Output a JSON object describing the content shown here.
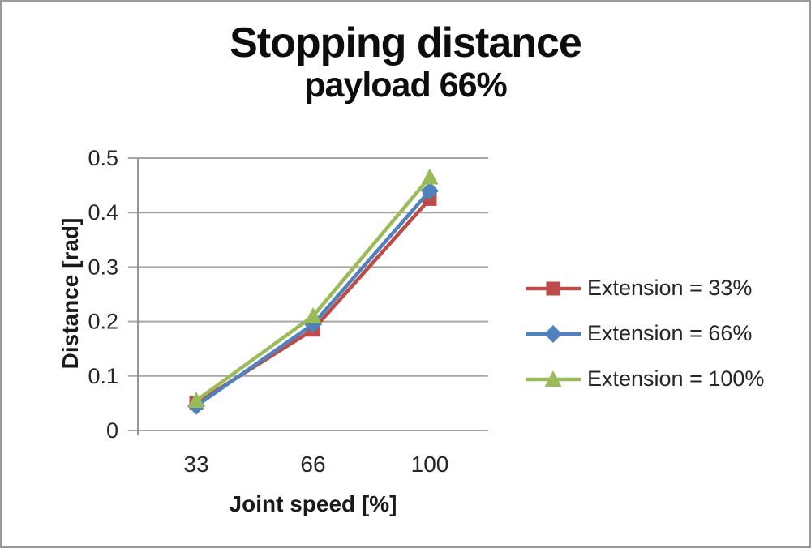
{
  "frame": {
    "background": "#ffffff",
    "border_color": "#9a9a9a"
  },
  "chart_data": {
    "type": "line",
    "title": "Stopping distance",
    "subtitle": "payload 66%",
    "xlabel": "Joint speed [%]",
    "ylabel": "Distance [rad]",
    "categories": [
      "33",
      "66",
      "100"
    ],
    "y_tick_values": [
      0,
      0.1,
      0.2,
      0.3,
      0.4,
      0.5
    ],
    "y_tick_labels": [
      "0",
      "0.1",
      "0.2",
      "0.3",
      "0.4",
      "0.5"
    ],
    "ylim": [
      0,
      0.5
    ],
    "grid": true,
    "legend_position": "right",
    "axis_color": "#969696",
    "gridline_color": "#a6a6a6",
    "series": [
      {
        "name": "Extension = 33%",
        "color": "#BE4B48",
        "marker": "square",
        "values": [
          0.05,
          0.185,
          0.425
        ]
      },
      {
        "name": "Extension = 66%",
        "color": "#4F81BD",
        "marker": "diamond",
        "values": [
          0.045,
          0.195,
          0.44
        ]
      },
      {
        "name": "Extension = 100%",
        "color": "#9BBB59",
        "marker": "triangle",
        "values": [
          0.055,
          0.21,
          0.465
        ]
      }
    ]
  }
}
